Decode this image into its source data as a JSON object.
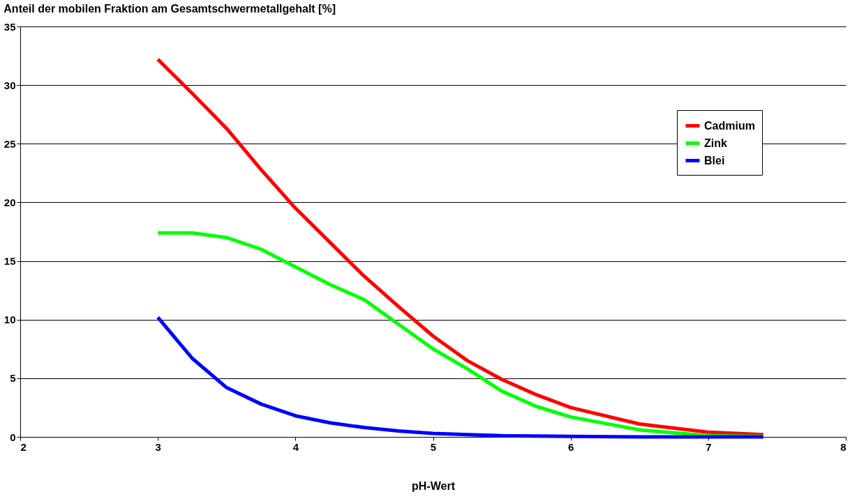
{
  "chart_data": {
    "type": "line",
    "title": "Anteil der mobilen Fraktion am Gesamtschwermetallgehalt [%]",
    "xlabel": "pH-Wert",
    "x": [
      3,
      3.25,
      3.5,
      3.75,
      4,
      4.25,
      4.5,
      4.75,
      5,
      5.25,
      5.5,
      5.75,
      6,
      6.5,
      7,
      7.4
    ],
    "series": [
      {
        "name": "Cadmium",
        "color": "#ff0000",
        "values": [
          32.2,
          29.3,
          26.3,
          22.8,
          19.5,
          16.6,
          13.7,
          11.1,
          8.6,
          6.5,
          4.9,
          3.6,
          2.5,
          1.1,
          0.4,
          0.2
        ]
      },
      {
        "name": "Zink",
        "color": "#00ff00",
        "values": [
          17.4,
          17.4,
          17.0,
          16.0,
          14.5,
          13.0,
          11.7,
          9.6,
          7.5,
          5.8,
          3.9,
          2.6,
          1.7,
          0.6,
          0.1,
          0.05
        ]
      },
      {
        "name": "Blei",
        "color": "#0000ff",
        "values": [
          10.2,
          6.7,
          4.2,
          2.8,
          1.8,
          1.2,
          0.8,
          0.5,
          0.3,
          0.2,
          0.1,
          0.07,
          0.05,
          0,
          0,
          0
        ]
      }
    ],
    "xlim": [
      2,
      8
    ],
    "xticks": [
      2,
      3,
      4,
      5,
      6,
      7,
      8
    ],
    "ylim": [
      0,
      35
    ],
    "yticks": [
      0,
      5,
      10,
      15,
      20,
      25,
      30,
      35
    ],
    "grid": "y",
    "legend": "top right",
    "marker": "none",
    "line_style": "solid"
  }
}
